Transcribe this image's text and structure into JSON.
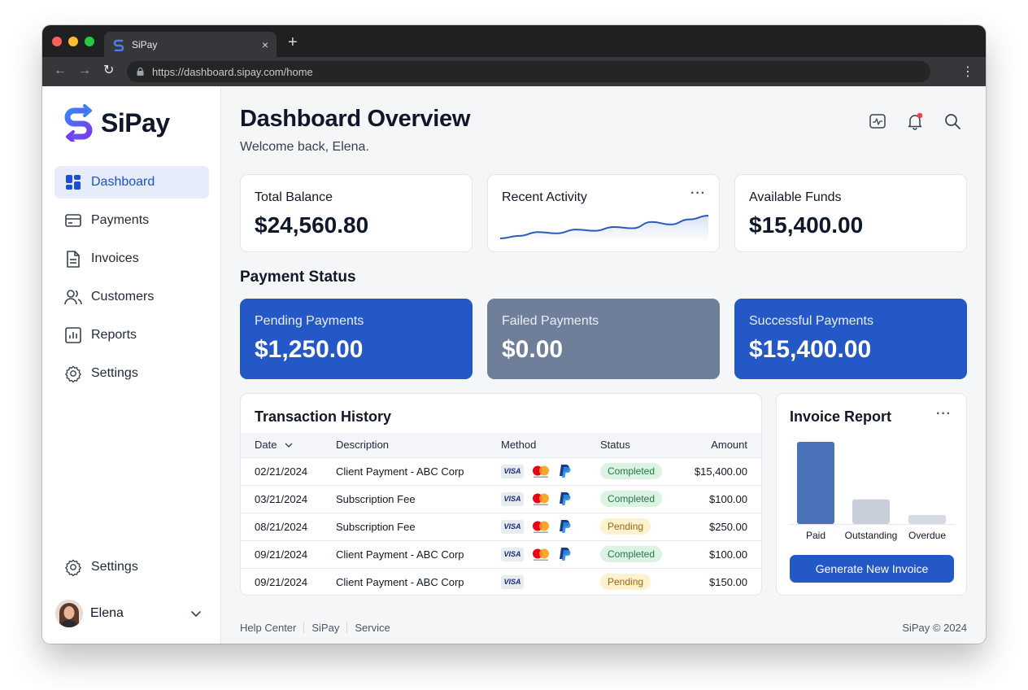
{
  "browser": {
    "tab_title": "SiPay",
    "tab_close": "×",
    "new_tab": "+",
    "url": "https://dashboard.sipay.com/home",
    "back": "←",
    "forward": "→",
    "reload": "↻",
    "menu": "⋮"
  },
  "sidebar": {
    "brand": "SiPay",
    "items": [
      {
        "label": "Dashboard",
        "icon": "grid-icon",
        "active": true
      },
      {
        "label": "Payments",
        "icon": "card-icon"
      },
      {
        "label": "Invoices",
        "icon": "document-icon"
      },
      {
        "label": "Customers",
        "icon": "users-icon"
      },
      {
        "label": "Reports",
        "icon": "chart-icon"
      },
      {
        "label": "Settings",
        "icon": "gear-icon"
      }
    ],
    "bottom_settings": "Settings",
    "user": {
      "name": "Elena"
    }
  },
  "header": {
    "title": "Dashboard Overview",
    "subtitle": "Welcome back, Elena."
  },
  "summary": {
    "total_balance": {
      "label": "Total Balance",
      "value": "$24,560.80"
    },
    "recent_activity": {
      "label": "Recent Activity",
      "menu": "···"
    },
    "available_funds": {
      "label": "Available Funds",
      "value": "$15,400.00"
    }
  },
  "payment_status": {
    "title": "Payment Status",
    "pending": {
      "label": "Pending Payments",
      "value": "$1,250.00"
    },
    "failed": {
      "label": "Failed Payments",
      "value": "$0.00"
    },
    "successful": {
      "label": "Successful Payments",
      "value": "$15,400.00"
    }
  },
  "transactions": {
    "title": "Transaction History",
    "columns": {
      "date": "Date",
      "description": "Description",
      "method": "Method",
      "status": "Status",
      "amount": "Amount"
    },
    "rows": [
      {
        "date": "02/21/2024",
        "description": "Client Payment - ABC Corp",
        "status": "Completed",
        "amount": "$15,400.00",
        "visa": "VISA",
        "mastercard": true,
        "paypal": true
      },
      {
        "date": "03/21/2024",
        "description": "Subscription Fee",
        "status": "Completed",
        "amount": "$100.00",
        "visa": "VISA",
        "mastercard": true,
        "paypal": true
      },
      {
        "date": "08/21/2024",
        "description": "Subscription Fee",
        "status": "Pending",
        "amount": "$250.00",
        "visa": "VISA",
        "mastercard": true,
        "paypal": true
      },
      {
        "date": "09/21/2024",
        "description": "Client Payment - ABC Corp",
        "status": "Completed",
        "amount": "$100.00",
        "visa": "VISA",
        "mastercard": true,
        "paypal": true
      },
      {
        "date": "09/21/2024",
        "description": "Client Payment - ABC Corp",
        "status": "Pending",
        "amount": "$150.00",
        "visa": "VISA",
        "mastercard": false,
        "paypal": false
      }
    ]
  },
  "invoice_report": {
    "title": "Invoice Report",
    "menu": "···",
    "button": "Generate New Invoice"
  },
  "chart_data": [
    {
      "type": "line",
      "series": [
        {
          "values": [
            2,
            4,
            7,
            6,
            9,
            8,
            11,
            10,
            15,
            13,
            17,
            20
          ]
        }
      ],
      "grid": false,
      "colors": [
        "#2a5bb8"
      ]
    },
    {
      "type": "bar",
      "categories": [
        "Paid",
        "Outstanding",
        "Overdue"
      ],
      "values": [
        100,
        30,
        11
      ],
      "colors": [
        "#4a72b8",
        "#c8cfda",
        "#d5d9e0"
      ]
    }
  ],
  "footer": {
    "links": [
      "Help Center",
      "SiPay",
      "Service"
    ],
    "copyright": "SiPay © 2024"
  },
  "colors": {
    "accent": "#2458c6",
    "failed_card": "#707f99",
    "pending_badge": "#fdf1cf",
    "completed_badge": "#dcf3e3"
  }
}
